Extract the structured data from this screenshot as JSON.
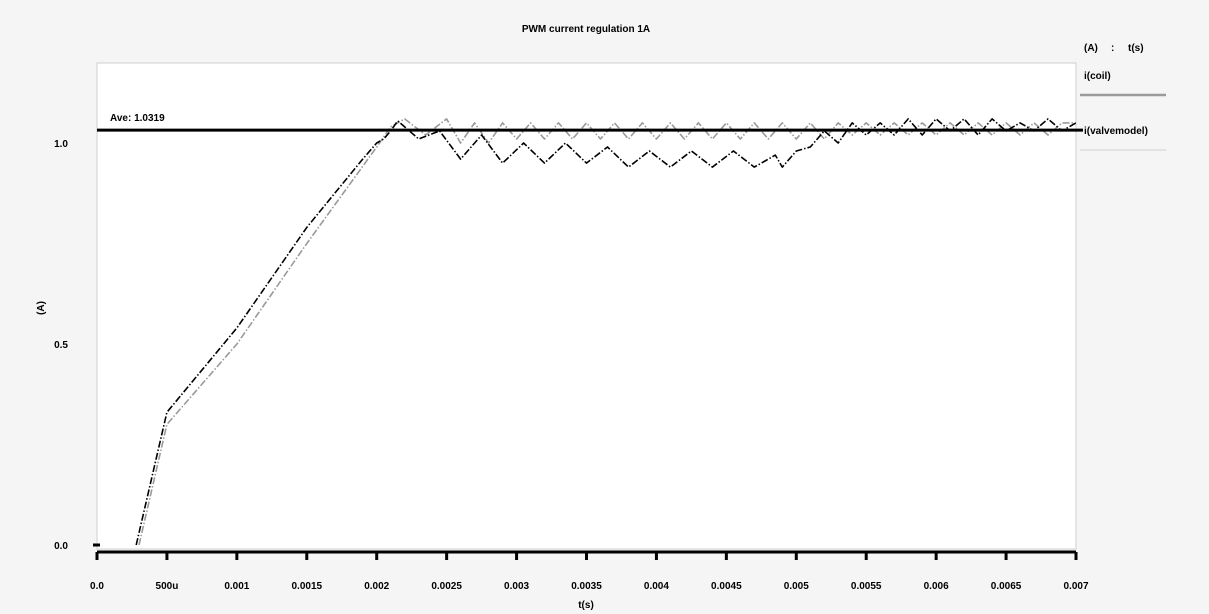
{
  "chart_data": {
    "type": "line",
    "title": "PWM current regulation 1A",
    "xlabel": "t(s)",
    "ylabel": "(A)",
    "legend_header": [
      "(A)",
      ":",
      "t(s)"
    ],
    "xlim": [
      0.0,
      0.007
    ],
    "ylim": [
      0.0,
      1.1
    ],
    "x_ticks": [
      {
        "value": 0.0,
        "label": "0.0"
      },
      {
        "value": 0.0005,
        "label": "500u"
      },
      {
        "value": 0.001,
        "label": "0.001"
      },
      {
        "value": 0.0015,
        "label": "0.0015"
      },
      {
        "value": 0.002,
        "label": "0.002"
      },
      {
        "value": 0.0025,
        "label": "0.0025"
      },
      {
        "value": 0.003,
        "label": "0.003"
      },
      {
        "value": 0.0035,
        "label": "0.0035"
      },
      {
        "value": 0.004,
        "label": "0.004"
      },
      {
        "value": 0.0045,
        "label": "0.0045"
      },
      {
        "value": 0.005,
        "label": "0.005"
      },
      {
        "value": 0.0055,
        "label": "0.0055"
      },
      {
        "value": 0.006,
        "label": "0.006"
      },
      {
        "value": 0.0065,
        "label": "0.0065"
      },
      {
        "value": 0.007,
        "label": "0.007"
      }
    ],
    "y_ticks": [
      {
        "value": 0.0,
        "label": "0.0"
      },
      {
        "value": 0.5,
        "label": "0.5"
      },
      {
        "value": 1.0,
        "label": "1.0"
      }
    ],
    "reference_line": {
      "label": "Ave: 1.0319",
      "value": 1.0319,
      "color": "#000000"
    },
    "grid": false,
    "legend_position": "right",
    "series": [
      {
        "name": "i(coil)",
        "color": "#000000",
        "x": [
          0.00028,
          0.0005,
          0.001,
          0.0015,
          0.0019,
          0.002,
          0.00205,
          0.0021,
          0.00215,
          0.0022,
          0.0023,
          0.00245,
          0.0026,
          0.00275,
          0.0029,
          0.00305,
          0.0032,
          0.00335,
          0.0035,
          0.00365,
          0.0038,
          0.00395,
          0.0041,
          0.00425,
          0.0044,
          0.00455,
          0.0047,
          0.00485,
          0.0049,
          0.005,
          0.0051,
          0.0052,
          0.0053,
          0.0054,
          0.0055,
          0.0056,
          0.0057,
          0.0058,
          0.0059,
          0.006,
          0.0061,
          0.0062,
          0.0063,
          0.0064,
          0.0065,
          0.0066,
          0.0067,
          0.0068,
          0.0069,
          0.007
        ],
        "y": [
          0.0,
          0.33,
          0.54,
          0.79,
          0.96,
          1.0,
          1.01,
          1.03,
          1.055,
          1.04,
          1.01,
          1.03,
          0.96,
          1.02,
          0.95,
          1.0,
          0.95,
          1.0,
          0.95,
          0.99,
          0.94,
          0.98,
          0.94,
          0.98,
          0.94,
          0.98,
          0.94,
          0.97,
          0.94,
          0.98,
          0.99,
          1.03,
          1.0,
          1.05,
          1.02,
          1.05,
          1.02,
          1.06,
          1.02,
          1.06,
          1.03,
          1.06,
          1.02,
          1.06,
          1.03,
          1.05,
          1.03,
          1.06,
          1.03,
          1.05
        ]
      },
      {
        "name": "i(valvemodel)",
        "color": "#9a9a9a",
        "x": [
          0.0003,
          0.0005,
          0.001,
          0.0015,
          0.002,
          0.0021,
          0.0022,
          0.00235,
          0.0025,
          0.0026,
          0.0027,
          0.0028,
          0.0029,
          0.003,
          0.0031,
          0.0032,
          0.0033,
          0.0034,
          0.0035,
          0.0036,
          0.0037,
          0.0038,
          0.0039,
          0.004,
          0.0041,
          0.0042,
          0.0043,
          0.0044,
          0.0045,
          0.0046,
          0.0047,
          0.0048,
          0.0049,
          0.005,
          0.0051,
          0.0052,
          0.0053,
          0.0054,
          0.0055,
          0.0056,
          0.0057,
          0.0058,
          0.0059,
          0.006,
          0.0061,
          0.0062,
          0.0063,
          0.0064,
          0.0065,
          0.0066,
          0.0067,
          0.0068,
          0.0069,
          0.007
        ],
        "y": [
          0.0,
          0.3,
          0.5,
          0.75,
          0.99,
          1.04,
          1.06,
          1.02,
          1.06,
          1.0,
          1.05,
          1.0,
          1.05,
          1.01,
          1.05,
          1.01,
          1.05,
          1.01,
          1.05,
          1.01,
          1.05,
          1.01,
          1.05,
          1.01,
          1.05,
          1.01,
          1.05,
          1.01,
          1.05,
          1.01,
          1.05,
          1.01,
          1.05,
          1.01,
          1.05,
          1.01,
          1.05,
          1.02,
          1.05,
          1.02,
          1.05,
          1.02,
          1.05,
          1.02,
          1.05,
          1.02,
          1.05,
          1.02,
          1.05,
          1.02,
          1.05,
          1.02,
          1.05,
          1.05
        ]
      }
    ]
  }
}
